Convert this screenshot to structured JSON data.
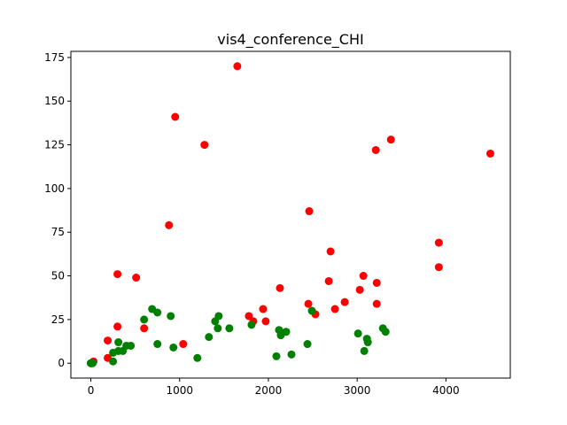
{
  "chart_data": {
    "type": "scatter",
    "title": "vis4_conference_CHI",
    "xlabel": "",
    "ylabel": "",
    "xlim": [
      -225,
      4725
    ],
    "ylim": [
      -8.5,
      178.5
    ],
    "xticks": [
      0,
      1000,
      2000,
      3000,
      4000
    ],
    "yticks": [
      0,
      25,
      50,
      75,
      100,
      125,
      150,
      175
    ],
    "grid": false,
    "series": [
      {
        "color": "#ff0000",
        "points": [
          [
            0,
            0
          ],
          [
            10,
            0
          ],
          [
            30,
            1
          ],
          [
            190,
            3
          ],
          [
            190,
            13
          ],
          [
            300,
            21
          ],
          [
            300,
            51
          ],
          [
            510,
            49
          ],
          [
            600,
            20
          ],
          [
            880,
            79
          ],
          [
            950,
            141
          ],
          [
            1040,
            11
          ],
          [
            1280,
            125
          ],
          [
            1650,
            170
          ],
          [
            1780,
            27
          ],
          [
            1830,
            24
          ],
          [
            1940,
            31
          ],
          [
            1970,
            24
          ],
          [
            2130,
            43
          ],
          [
            2450,
            34
          ],
          [
            2460,
            87
          ],
          [
            2530,
            28
          ],
          [
            2680,
            47
          ],
          [
            2700,
            64
          ],
          [
            2750,
            31
          ],
          [
            2860,
            35
          ],
          [
            3030,
            42
          ],
          [
            3070,
            50
          ],
          [
            3210,
            122
          ],
          [
            3220,
            46
          ],
          [
            3220,
            34
          ],
          [
            3380,
            128
          ],
          [
            3920,
            69
          ],
          [
            3920,
            55
          ],
          [
            4500,
            120
          ]
        ]
      },
      {
        "color": "#008000",
        "points": [
          [
            0,
            0
          ],
          [
            0,
            0
          ],
          [
            20,
            0
          ],
          [
            250,
            6
          ],
          [
            250,
            1
          ],
          [
            310,
            12
          ],
          [
            310,
            7
          ],
          [
            360,
            7
          ],
          [
            400,
            10
          ],
          [
            450,
            10
          ],
          [
            600,
            25
          ],
          [
            690,
            31
          ],
          [
            750,
            11
          ],
          [
            750,
            29
          ],
          [
            900,
            27
          ],
          [
            930,
            9
          ],
          [
            1200,
            3
          ],
          [
            1330,
            15
          ],
          [
            1400,
            24
          ],
          [
            1430,
            20
          ],
          [
            1440,
            27
          ],
          [
            1560,
            20
          ],
          [
            1810,
            22
          ],
          [
            2090,
            4
          ],
          [
            2120,
            19
          ],
          [
            2140,
            16
          ],
          [
            2200,
            18
          ],
          [
            2260,
            5
          ],
          [
            2440,
            11
          ],
          [
            2490,
            30
          ],
          [
            3010,
            17
          ],
          [
            3080,
            7
          ],
          [
            3110,
            14
          ],
          [
            3120,
            12
          ],
          [
            3290,
            20
          ],
          [
            3320,
            18
          ]
        ]
      }
    ]
  }
}
